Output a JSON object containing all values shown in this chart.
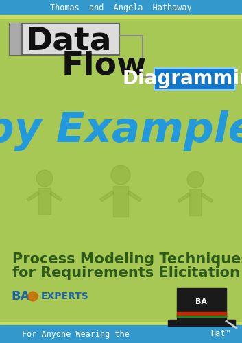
{
  "bg_color": "#a8c855",
  "header_bg": "#3399cc",
  "footer_bg": "#3399cc",
  "header_text": "Thomas  and  Angela  Hathaway",
  "header_color": "#ffffff",
  "footer_text_left": "For Anyone Wearing the",
  "footer_text_right": "Hat™",
  "footer_color": "#ffffff",
  "data_text": "Data",
  "flow_text": "Flow",
  "diagramming_text": "Diagramming",
  "diagramming_bg": "#1177cc",
  "diagramming_color": "#ffffff",
  "byexample_text": "by Example",
  "byexample_color": "#2299dd",
  "subtitle_line1": "Process Modeling Techniques",
  "subtitle_line2": "for Requirements Elicitation",
  "subtitle_color": "#2d5a1b",
  "baexperts_ba_color": "#2266aa",
  "baexperts_experts_color": "#2266aa",
  "header_fontsize": 8.5,
  "data_fontsize": 34,
  "flow_fontsize": 34,
  "diagramming_fontsize": 20,
  "byexample_fontsize": 44,
  "subtitle_fontsize": 15,
  "footer_fontsize": 8.5
}
